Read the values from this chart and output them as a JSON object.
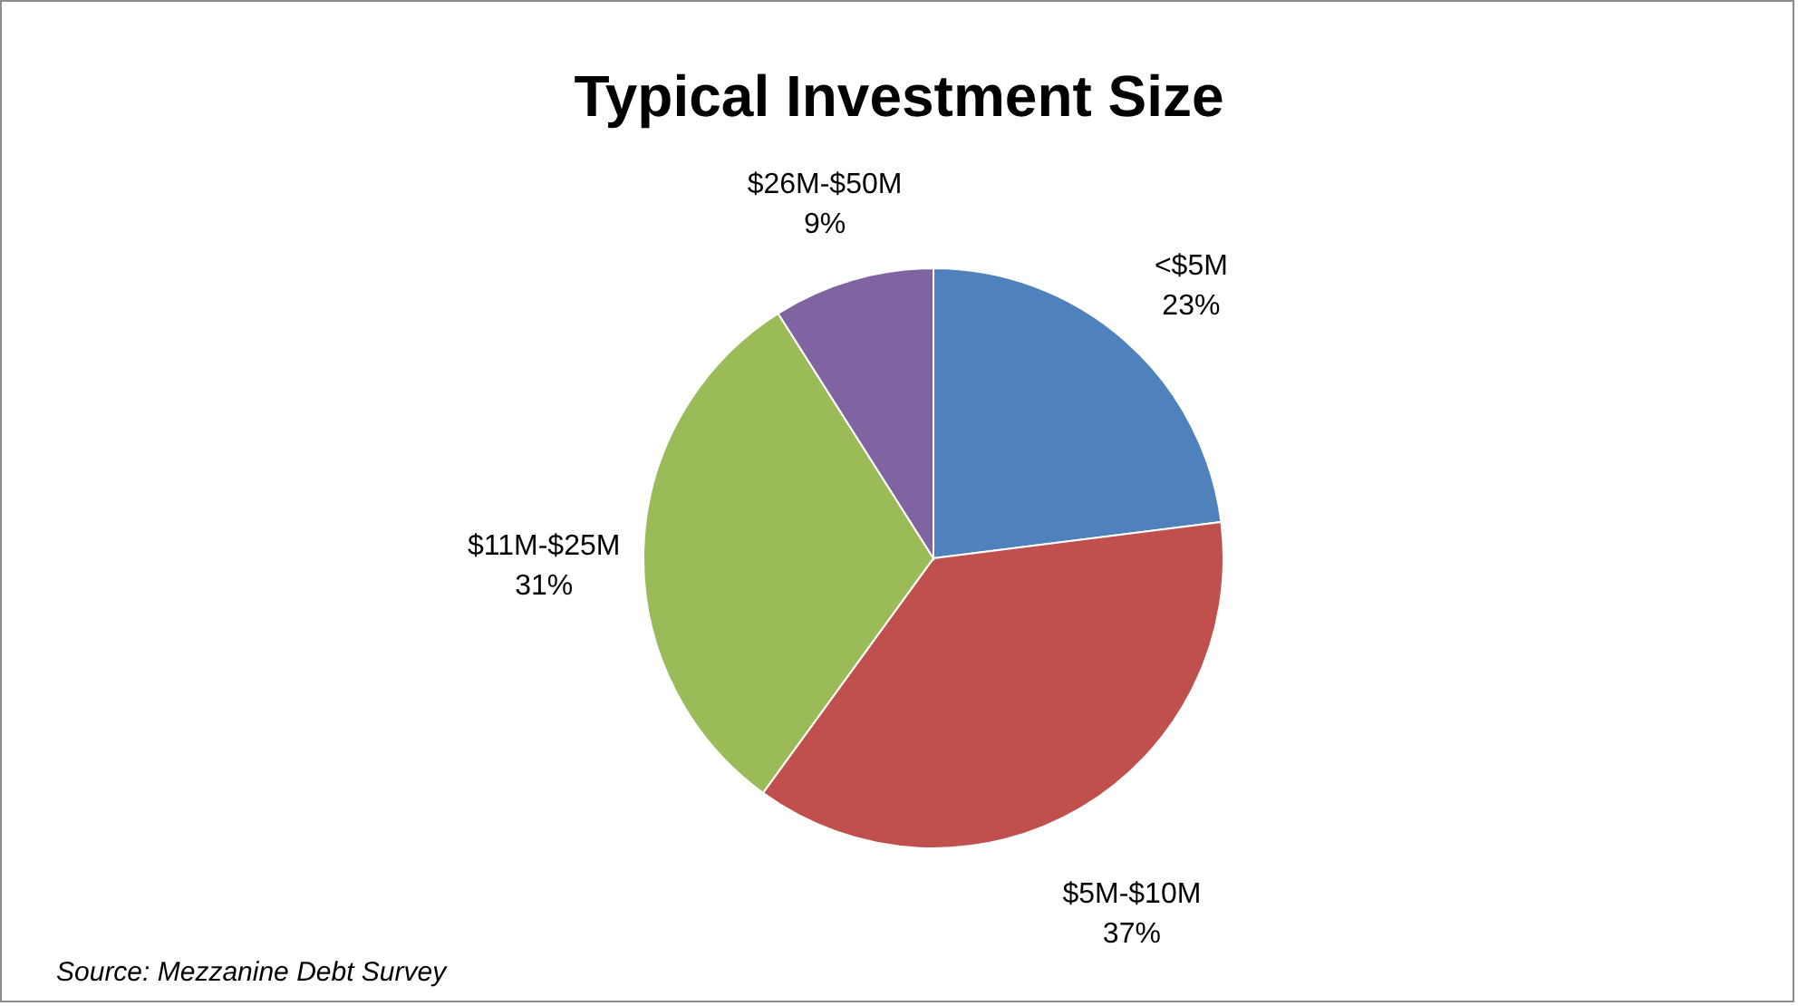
{
  "chart_data": {
    "type": "pie",
    "title": "Typical Investment Size",
    "categories": [
      "<$5M",
      "$5M-$10M",
      "$11M-$25M",
      "$26M-$50M"
    ],
    "values": [
      23,
      37,
      31,
      9
    ],
    "value_labels": [
      "23%",
      "37%",
      "31%",
      "9%"
    ],
    "colors": [
      "#4f81bd",
      "#c0504d",
      "#9bbb59",
      "#8064a2"
    ],
    "legend": false,
    "annotations": [
      "Source: Mezzanine Debt Survey"
    ]
  }
}
